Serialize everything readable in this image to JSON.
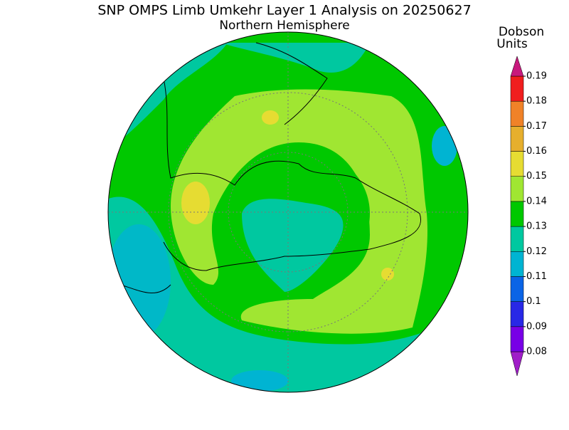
{
  "header": {
    "title": "SNP OMPS Limb Umkehr Layer 1 Analysis on 20250627",
    "subtitle": "Northern Hemisphere"
  },
  "colorbar": {
    "label": [
      "Dobson",
      "Units"
    ],
    "ticks": [
      0.08,
      0.09,
      0.1,
      0.11,
      0.12,
      0.13,
      0.14,
      0.15,
      0.16,
      0.17,
      0.18,
      0.19
    ],
    "colors": [
      "#a01ec8",
      "#7800e6",
      "#2828e6",
      "#0a64e6",
      "#00b4d2",
      "#00c8a0",
      "#00c800",
      "#a0e632",
      "#e6dc32",
      "#e6af2d",
      "#f08228",
      "#f01e1e",
      "#c8197d"
    ]
  }
}
